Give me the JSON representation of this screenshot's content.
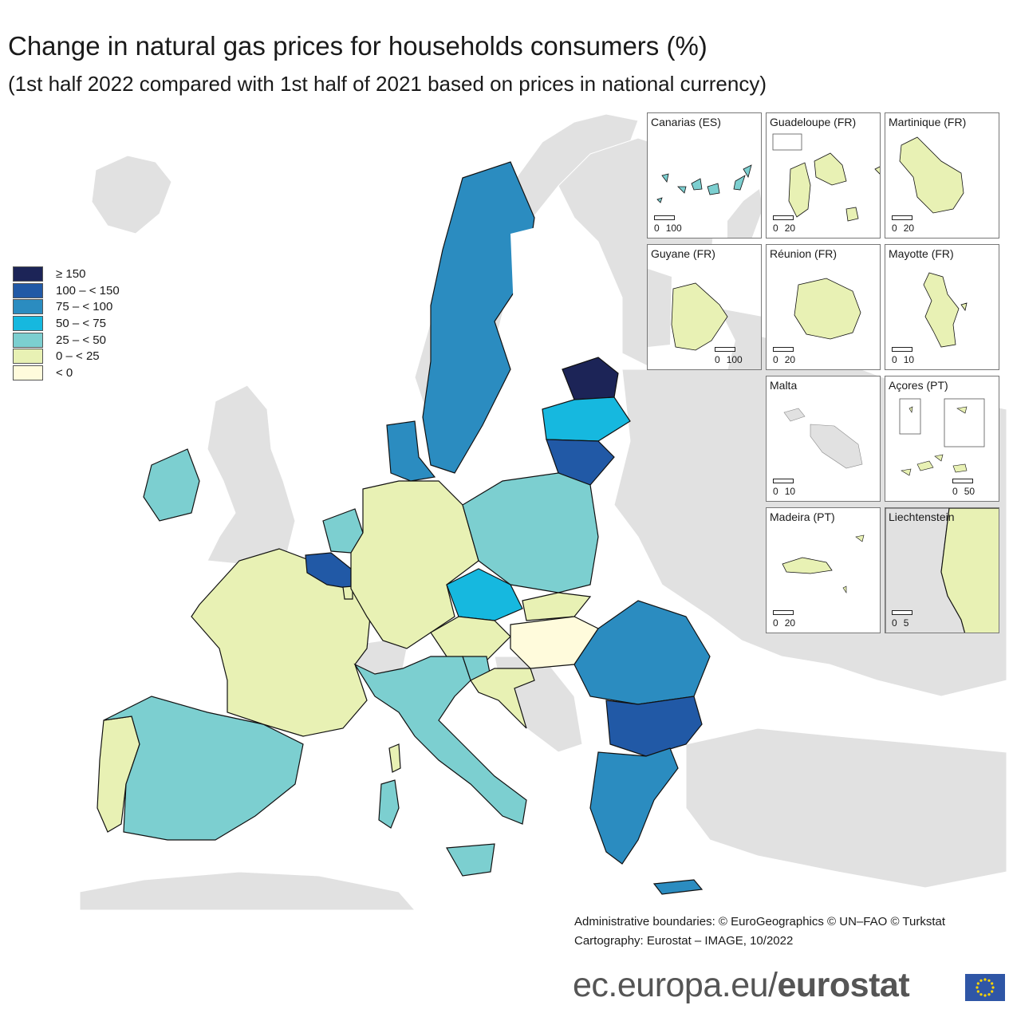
{
  "title": "Change in natural gas prices for households consumers (%)",
  "subtitle": "(1st half 2022 compared with 1st half of 2021 based on prices in national currency)",
  "legend": [
    {
      "label": "≥ 150",
      "color": "#1c2457"
    },
    {
      "label": "100 – < 150",
      "color": "#2159a6"
    },
    {
      "label": "75 – < 100",
      "color": "#2b8cc0"
    },
    {
      "label": "50 – < 75",
      "color": "#16b8df"
    },
    {
      "label": "25 – < 50",
      "color": "#7ccfd0"
    },
    {
      "label": "0 – < 25",
      "color": "#e8f1b4"
    },
    {
      "label": "< 0",
      "color": "#fffbdc"
    }
  ],
  "no_data_color": "#e1e1e1",
  "insets": [
    {
      "label": "Canarias (ES)",
      "scale": [
        "0",
        "100"
      ]
    },
    {
      "label": "Guadeloupe (FR)",
      "scale": [
        "0",
        "20"
      ]
    },
    {
      "label": "Martinique (FR)",
      "scale": [
        "0",
        "20"
      ]
    },
    {
      "label": "Guyane (FR)",
      "scale": [
        "0",
        "100"
      ]
    },
    {
      "label": "Réunion (FR)",
      "scale": [
        "0",
        "20"
      ]
    },
    {
      "label": "Mayotte (FR)",
      "scale": [
        "0",
        "10"
      ]
    },
    {
      "label": "Malta",
      "scale": [
        "0",
        "10"
      ]
    },
    {
      "label": "Açores (PT)",
      "scale": [
        "0",
        "50"
      ]
    },
    {
      "label": "Madeira (PT)",
      "scale": [
        "0",
        "20"
      ]
    },
    {
      "label": "Liechtenstein",
      "scale": [
        "0",
        "5"
      ]
    }
  ],
  "credits": {
    "line1": "Administrative boundaries: © EuroGeographics © UN–FAO © Turkstat",
    "line2": "Cartography: Eurostat – IMAGE, 10/2022"
  },
  "footer": {
    "prefix": "ec.europa.eu/",
    "brand": "eurostat"
  }
}
